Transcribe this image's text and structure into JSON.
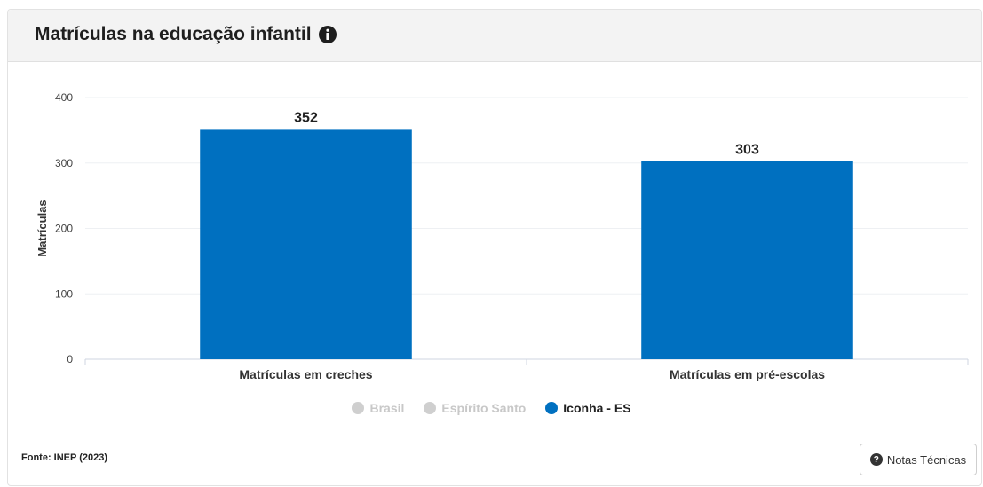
{
  "header": {
    "title": "Matrículas na educação infantil",
    "info_icon": "info-circle-icon"
  },
  "chart_data": {
    "type": "bar",
    "categories": [
      "Matrículas em creches",
      "Matrículas em pré-escolas"
    ],
    "series": [
      {
        "name": "Iconha - ES",
        "values": [
          352,
          303
        ],
        "color": "#0070c0"
      }
    ],
    "ylabel": "Matrículas",
    "xlabel": "",
    "ylim": [
      0,
      400
    ],
    "yticks": [
      0,
      100,
      200,
      300,
      400
    ],
    "grid": true,
    "legend_placement": "bottom-center"
  },
  "legend": {
    "items": [
      {
        "label": "Brasil",
        "state": "inactive"
      },
      {
        "label": "Espírito Santo",
        "state": "inactive"
      },
      {
        "label": "Iconha - ES",
        "state": "active",
        "color": "#0070c0"
      }
    ]
  },
  "footer": {
    "source": "Fonte: INEP (2023)",
    "notes_button": "Notas Técnicas",
    "notes_icon": "question-circle-icon"
  }
}
